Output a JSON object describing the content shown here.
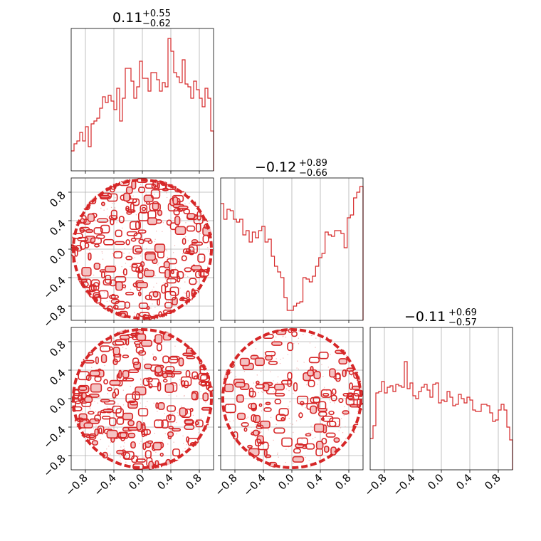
{
  "chart_data": {
    "type": "corner",
    "color": "#d62728",
    "fill_color": "#f4c2c2",
    "axis_range": [
      -1,
      1
    ],
    "ticks": [
      -0.8,
      -0.4,
      0.0,
      0.4,
      0.8
    ],
    "tick_labels": [
      "−0.8",
      "−0.4",
      "0.0",
      "0.4",
      "0.8"
    ],
    "grid": true,
    "parameters": [
      {
        "title": {
          "median": "0.11",
          "plus": "+0.55",
          "minus": "−0.62"
        },
        "hist": [
          0.14,
          0.19,
          0.21,
          0.27,
          0.21,
          0.31,
          0.17,
          0.33,
          0.35,
          0.37,
          0.44,
          0.52,
          0.48,
          0.53,
          0.49,
          0.43,
          0.58,
          0.35,
          0.51,
          0.72,
          0.72,
          0.63,
          0.51,
          0.59,
          0.77,
          0.65,
          0.65,
          0.56,
          0.69,
          0.69,
          0.64,
          0.56,
          0.62,
          0.59,
          0.93,
          0.84,
          0.69,
          0.66,
          0.62,
          0.78,
          0.61,
          0.59,
          0.51,
          0.63,
          0.57,
          0.51,
          0.45,
          0.58,
          0.51,
          0.28
        ]
      },
      {
        "title": {
          "median": "−0.12",
          "plus": "+0.89",
          "minus": "−0.66"
        },
        "hist": [
          0.82,
          0.71,
          0.78,
          0.77,
          0.71,
          0.69,
          0.71,
          0.6,
          0.63,
          0.55,
          0.62,
          0.58,
          0.63,
          0.66,
          0.55,
          0.57,
          0.45,
          0.38,
          0.34,
          0.3,
          0.16,
          0.07,
          0.07,
          0.1,
          0.12,
          0.13,
          0.3,
          0.29,
          0.27,
          0.31,
          0.38,
          0.44,
          0.47,
          0.62,
          0.6,
          0.59,
          0.63,
          0.63,
          0.61,
          0.51,
          0.72,
          0.74,
          0.86,
          0.9,
          0.94
        ]
      },
      {
        "title": {
          "median": "−0.11",
          "plus": "+0.69",
          "minus": "−0.57"
        },
        "hist": [
          0.22,
          0.31,
          0.54,
          0.55,
          0.62,
          0.54,
          0.58,
          0.59,
          0.55,
          0.6,
          0.59,
          0.58,
          0.76,
          0.57,
          0.61,
          0.52,
          0.5,
          0.55,
          0.58,
          0.6,
          0.56,
          0.51,
          0.6,
          0.61,
          0.47,
          0.49,
          0.48,
          0.55,
          0.51,
          0.45,
          0.46,
          0.53,
          0.5,
          0.47,
          0.51,
          0.49,
          0.42,
          0.41,
          0.41,
          0.46,
          0.46,
          0.45,
          0.4,
          0.34,
          0.35,
          0.42,
          0.46,
          0.42,
          0.3,
          0.21
        ]
      }
    ]
  }
}
